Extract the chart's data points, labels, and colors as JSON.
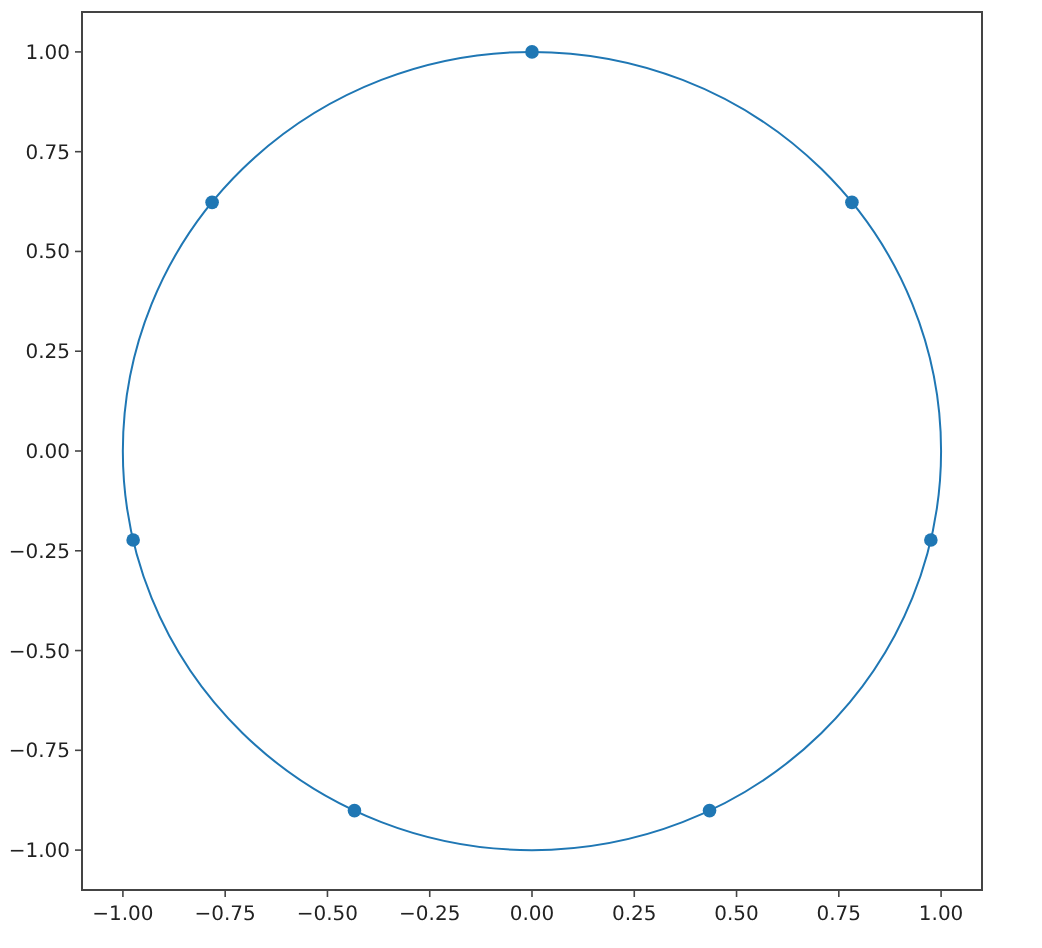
{
  "chart_data": {
    "type": "scatter",
    "xlim": [
      -1.1,
      1.1
    ],
    "ylim": [
      -1.1,
      1.1
    ],
    "xticks": [
      {
        "value": -1,
        "label": "−1.00"
      },
      {
        "value": -0.75,
        "label": "−0.75"
      },
      {
        "value": -0.5,
        "label": "−0.50"
      },
      {
        "value": -0.25,
        "label": "−0.25"
      },
      {
        "value": 0,
        "label": "0.00"
      },
      {
        "value": 0.25,
        "label": "0.25"
      },
      {
        "value": 0.5,
        "label": "0.50"
      },
      {
        "value": 0.75,
        "label": "0.75"
      },
      {
        "value": 1,
        "label": "1.00"
      }
    ],
    "yticks": [
      {
        "value": -1,
        "label": "−1.00"
      },
      {
        "value": -0.75,
        "label": "−0.75"
      },
      {
        "value": -0.5,
        "label": "−0.50"
      },
      {
        "value": -0.25,
        "label": "−0.25"
      },
      {
        "value": 0,
        "label": "0.00"
      },
      {
        "value": 0.25,
        "label": "0.25"
      },
      {
        "value": 0.5,
        "label": "0.50"
      },
      {
        "value": 0.75,
        "label": "0.75"
      },
      {
        "value": 1,
        "label": "1.00"
      }
    ],
    "grid": false,
    "marker": "circle",
    "color": "#1f77b4",
    "x": [
      0,
      -0.782,
      -0.975,
      -0.434,
      0.434,
      0.975,
      0.782
    ],
    "values": [
      1,
      0.623,
      -0.223,
      -0.901,
      -0.901,
      -0.223,
      0.623
    ]
  }
}
